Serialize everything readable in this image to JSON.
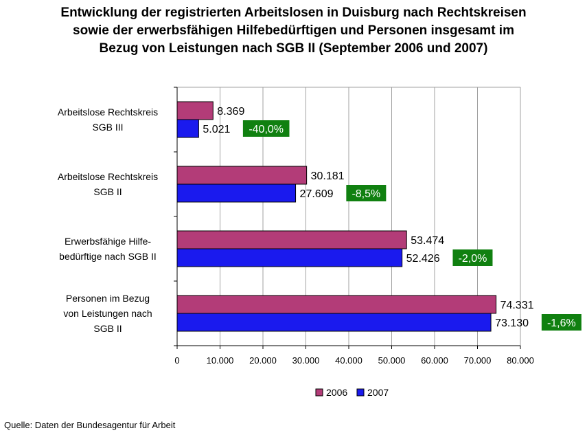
{
  "chart_data": {
    "type": "bar",
    "orientation": "horizontal",
    "title_lines": [
      "Entwicklung der registrierten Arbeitslosen in Duisburg nach Rechtskreisen",
      "sowie der erwerbsfähigen Hilfebedürftigen und Personen insgesamt im",
      "Bezug von Leistungen nach SGB II (September 2006 und 2007)"
    ],
    "categories": [
      {
        "lines": [
          "Arbeitslose Rechtskreis",
          "SGB III"
        ]
      },
      {
        "lines": [
          "Arbeitslose Rechtskreis",
          "SGB II"
        ]
      },
      {
        "lines": [
          "Erwerbsfähige Hilfe-",
          "bedürftige nach SGB II"
        ]
      },
      {
        "lines": [
          "Personen im Bezug",
          "von Leistungen nach",
          "SGB II"
        ]
      }
    ],
    "series": [
      {
        "name": "2006",
        "color": "#b33c78",
        "values": [
          8369,
          30181,
          53474,
          74331
        ],
        "labels": [
          "8.369",
          "30.181",
          "53.474",
          "74.331"
        ]
      },
      {
        "name": "2007",
        "color": "#1a1aee",
        "values": [
          5021,
          27609,
          52426,
          73130
        ],
        "labels": [
          "5.021",
          "27.609",
          "52.426",
          "73.130"
        ]
      }
    ],
    "changes": [
      "-40,0%",
      "-8,5%",
      "-2,0%",
      "-1,6%"
    ],
    "change_color": "#108010",
    "xlim": [
      0,
      80000
    ],
    "xticks": [
      {
        "value": 0,
        "label": "0"
      },
      {
        "value": 10000,
        "label": "10.000"
      },
      {
        "value": 20000,
        "label": "20.000"
      },
      {
        "value": 30000,
        "label": "30.000"
      },
      {
        "value": 40000,
        "label": "40.000"
      },
      {
        "value": 50000,
        "label": "50.000"
      },
      {
        "value": 60000,
        "label": "60.000"
      },
      {
        "value": 70000,
        "label": "70.000"
      },
      {
        "value": 80000,
        "label": "80.000"
      }
    ],
    "grid": true,
    "legend_position": "bottom"
  },
  "source": "Quelle: Daten der Bundesagentur für Arbeit"
}
